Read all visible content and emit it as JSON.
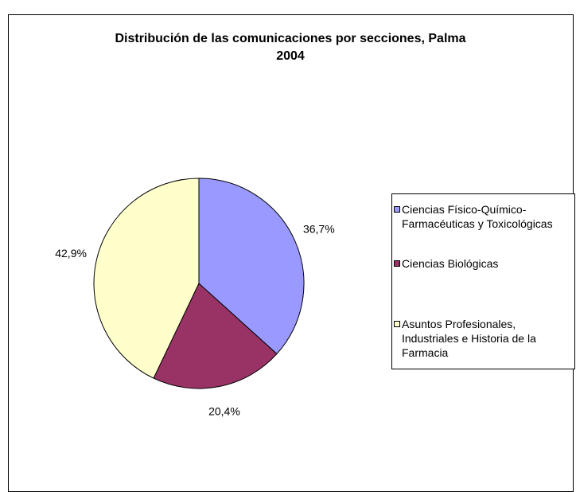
{
  "chart_data": {
    "type": "pie",
    "title": "Distribución de las comunicaciones por secciones, Palma 2004",
    "categories": [
      "Ciencias Físico-Químico-Farmacéuticas y Toxicológicas",
      "Ciencias Biológicas",
      "Asuntos Profesionales, Industriales e Historia de la Farmacia"
    ],
    "values": [
      36.7,
      20.4,
      42.9
    ],
    "value_labels": [
      "36,7%",
      "20,4%",
      "42,9%"
    ],
    "colors": [
      "#9999ff",
      "#993366",
      "#ffffcc"
    ],
    "legend": "right"
  }
}
